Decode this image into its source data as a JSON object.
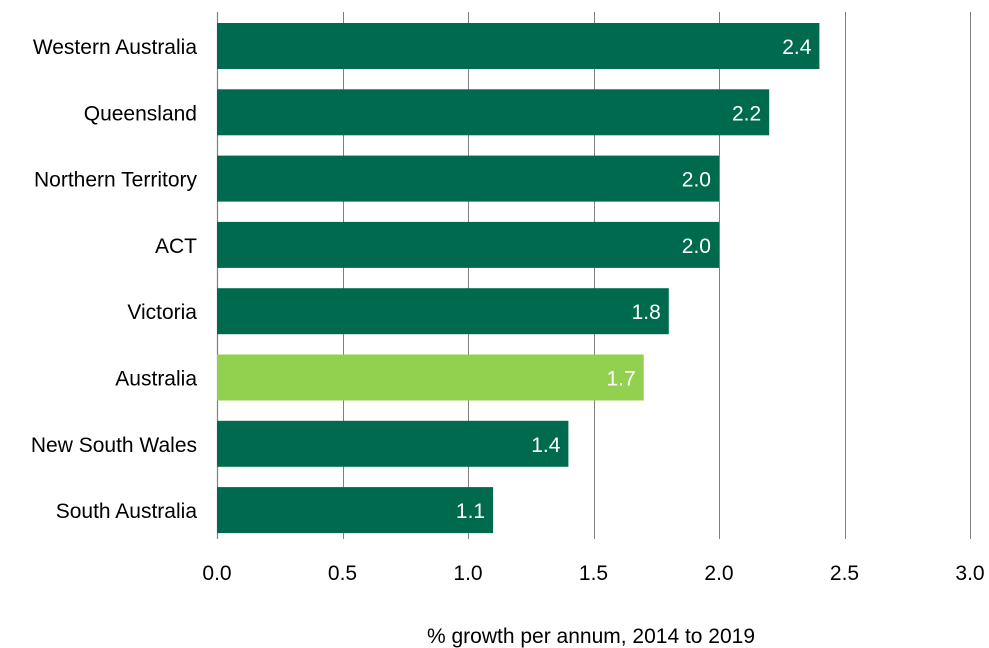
{
  "chart_data": {
    "type": "bar",
    "orientation": "horizontal",
    "categories": [
      "Western Australia",
      "Queensland",
      "Northern Territory",
      "ACT",
      "Victoria",
      "Australia",
      "New South Wales",
      "South Australia"
    ],
    "values": [
      2.4,
      2.2,
      2.0,
      2.0,
      1.8,
      1.7,
      1.4,
      1.1
    ],
    "data_labels": [
      "2.4",
      "2.2",
      "2.0",
      "2.0",
      "1.8",
      "1.7",
      "1.4",
      "1.1"
    ],
    "highlight_category": "Australia",
    "xlabel": "% growth per annum,  2014 to 2019",
    "ylabel": "",
    "xlim": [
      0,
      3
    ],
    "x_ticks": [
      0,
      0.5,
      1,
      1.5,
      2,
      2.5,
      3
    ],
    "x_tick_labels": [
      "0.0",
      "0.5",
      "1.0",
      "1.5",
      "2.0",
      "2.5",
      "3.0"
    ],
    "grid": "vertical",
    "legend": "none",
    "colors": {
      "bar": "#006a4e",
      "highlight": "#92d050",
      "gridline": "#808080",
      "data_label": "#ffffff"
    }
  }
}
